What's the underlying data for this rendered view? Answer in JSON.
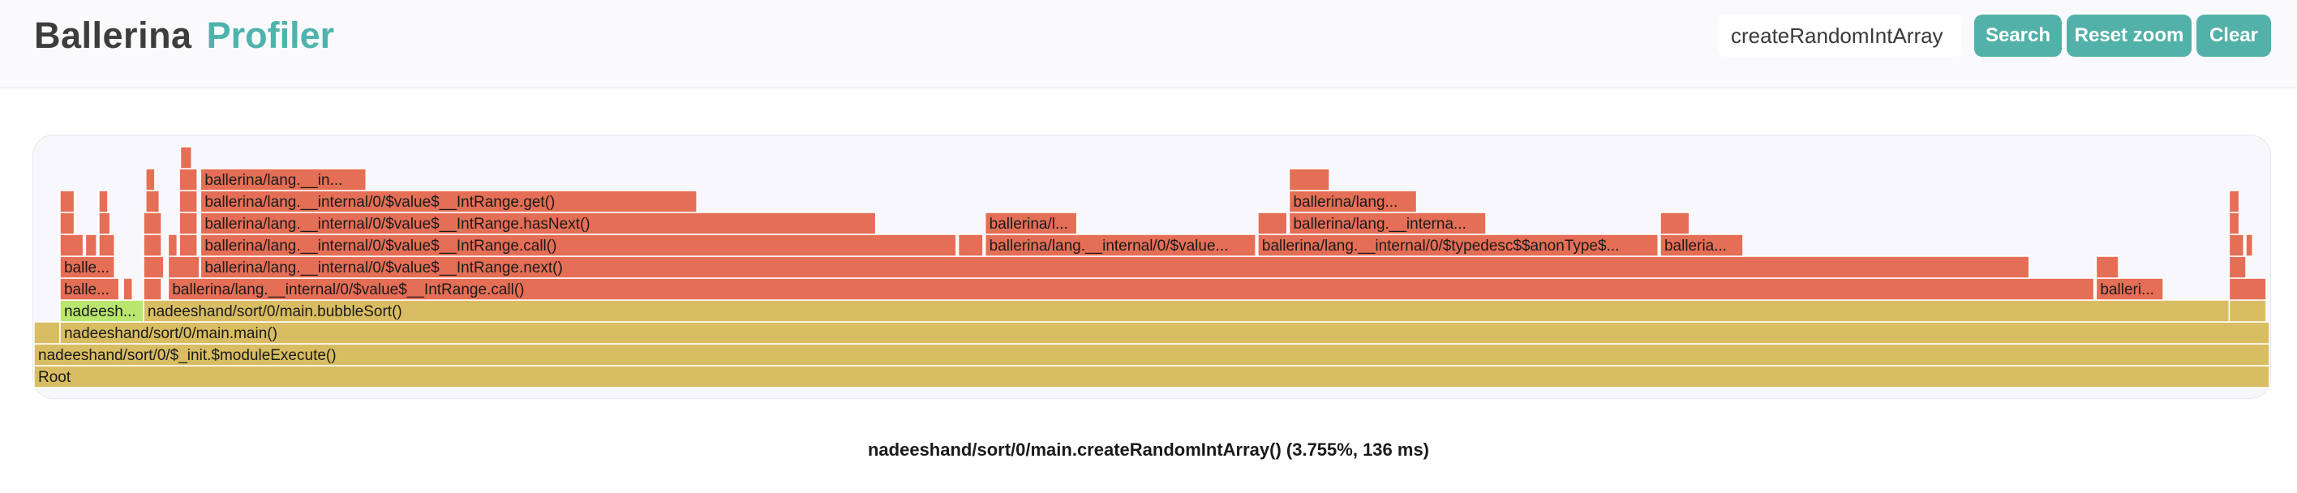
{
  "header": {
    "brand_primary": "Ballerina",
    "brand_secondary": "Profiler",
    "search_value": "createRandomIntArray",
    "search_label": "Search",
    "reset_label": "Reset zoom",
    "clear_label": "Clear"
  },
  "flamegraph": {
    "colors": {
      "hot": "#e56e56",
      "warm": "#d9bd62",
      "match": "#b9e66f",
      "stroke": "#ffffff"
    },
    "frames": [
      {
        "label": "Root",
        "level": 0,
        "start": 0.0,
        "end": 1.0,
        "color": "warm"
      },
      {
        "label": "nadeeshand/sort/0/$_init.$moduleExecute()",
        "level": 1,
        "start": 0.0,
        "end": 1.0,
        "color": "warm"
      },
      {
        "label": "",
        "level": 2,
        "start": 0.0,
        "end": 0.0116,
        "color": "warm"
      },
      {
        "label": "nadeeshand/sort/0/main.main()",
        "level": 2,
        "start": 0.0116,
        "end": 1.0,
        "color": "warm"
      },
      {
        "label": "nadeesh...",
        "level": 3,
        "start": 0.0116,
        "end": 0.049,
        "color": "match"
      },
      {
        "label": "nadeeshand/sort/0/main.bubbleSort()",
        "level": 3,
        "start": 0.049,
        "end": 0.982,
        "color": "warm"
      },
      {
        "label": "",
        "level": 3,
        "start": 0.982,
        "end": 0.9985,
        "color": "warm"
      },
      {
        "label": "balle...",
        "level": 4,
        "start": 0.0116,
        "end": 0.038,
        "color": "hot"
      },
      {
        "label": "",
        "level": 4,
        "start": 0.04,
        "end": 0.044,
        "color": "hot"
      },
      {
        "label": "",
        "level": 4,
        "start": 0.049,
        "end": 0.057,
        "color": "hot"
      },
      {
        "label": "ballerina/lang.__internal/0/$value$__IntRange.call()",
        "level": 4,
        "start": 0.06,
        "end": 0.9215,
        "color": "hot"
      },
      {
        "label": "balleri...",
        "level": 4,
        "start": 0.9225,
        "end": 0.9525,
        "color": "hot"
      },
      {
        "label": "",
        "level": 4,
        "start": 0.982,
        "end": 0.9985,
        "color": "hot"
      },
      {
        "label": "balle...",
        "level": 5,
        "start": 0.0116,
        "end": 0.036,
        "color": "hot"
      },
      {
        "label": "",
        "level": 5,
        "start": 0.049,
        "end": 0.058,
        "color": "hot"
      },
      {
        "label": "",
        "level": 5,
        "start": 0.06,
        "end": 0.074,
        "color": "hot"
      },
      {
        "label": "ballerina/lang.__internal/0/$value$__IntRange.next()",
        "level": 5,
        "start": 0.0745,
        "end": 0.8925,
        "color": "hot"
      },
      {
        "label": "",
        "level": 5,
        "start": 0.9225,
        "end": 0.9325,
        "color": "hot"
      },
      {
        "label": "",
        "level": 5,
        "start": 0.982,
        "end": 0.9895,
        "color": "hot"
      },
      {
        "label": "",
        "level": 6,
        "start": 0.0116,
        "end": 0.022,
        "color": "hot"
      },
      {
        "label": "",
        "level": 6,
        "start": 0.023,
        "end": 0.028,
        "color": "hot"
      },
      {
        "label": "",
        "level": 6,
        "start": 0.029,
        "end": 0.036,
        "color": "hot"
      },
      {
        "label": "",
        "level": 6,
        "start": 0.049,
        "end": 0.057,
        "color": "hot"
      },
      {
        "label": "",
        "level": 6,
        "start": 0.06,
        "end": 0.064,
        "color": "hot"
      },
      {
        "label": "",
        "level": 6,
        "start": 0.065,
        "end": 0.073,
        "color": "hot"
      },
      {
        "label": "ballerina/lang.__internal/0/$value$__IntRange.call()",
        "level": 6,
        "start": 0.0745,
        "end": 0.4125,
        "color": "hot"
      },
      {
        "label": "",
        "level": 6,
        "start": 0.4135,
        "end": 0.4245,
        "color": "hot"
      },
      {
        "label": "ballerina/lang.__internal/0/$value...",
        "level": 6,
        "start": 0.4255,
        "end": 0.5465,
        "color": "hot"
      },
      {
        "label": "ballerina/lang.__internal/0/$typedesc$$anonType$...",
        "level": 6,
        "start": 0.5475,
        "end": 0.7265,
        "color": "hot"
      },
      {
        "label": "balleria...",
        "level": 6,
        "start": 0.7275,
        "end": 0.7645,
        "color": "hot"
      },
      {
        "label": "",
        "level": 6,
        "start": 0.982,
        "end": 0.9885,
        "color": "hot"
      },
      {
        "label": "",
        "level": 6,
        "start": 0.9895,
        "end": 0.9925,
        "color": "hot"
      },
      {
        "label": "",
        "level": 7,
        "start": 0.0116,
        "end": 0.018,
        "color": "hot"
      },
      {
        "label": "",
        "level": 7,
        "start": 0.029,
        "end": 0.034,
        "color": "hot"
      },
      {
        "label": "",
        "level": 7,
        "start": 0.049,
        "end": 0.057,
        "color": "hot"
      },
      {
        "label": "",
        "level": 7,
        "start": 0.065,
        "end": 0.073,
        "color": "hot"
      },
      {
        "label": "ballerina/lang.__internal/0/$value$__IntRange.hasNext()",
        "level": 7,
        "start": 0.0745,
        "end": 0.3765,
        "color": "hot"
      },
      {
        "label": "ballerina/l...",
        "level": 7,
        "start": 0.4255,
        "end": 0.4665,
        "color": "hot"
      },
      {
        "label": "",
        "level": 7,
        "start": 0.5475,
        "end": 0.5605,
        "color": "hot"
      },
      {
        "label": "ballerina/lang.__interna...",
        "level": 7,
        "start": 0.5615,
        "end": 0.6495,
        "color": "hot"
      },
      {
        "label": "",
        "level": 7,
        "start": 0.7275,
        "end": 0.7405,
        "color": "hot"
      },
      {
        "label": "",
        "level": 7,
        "start": 0.982,
        "end": 0.9865,
        "color": "hot"
      },
      {
        "label": "",
        "level": 8,
        "start": 0.0116,
        "end": 0.018,
        "color": "hot"
      },
      {
        "label": "",
        "level": 8,
        "start": 0.029,
        "end": 0.033,
        "color": "hot"
      },
      {
        "label": "",
        "level": 8,
        "start": 0.05,
        "end": 0.056,
        "color": "hot"
      },
      {
        "label": "",
        "level": 8,
        "start": 0.065,
        "end": 0.073,
        "color": "hot"
      },
      {
        "label": "ballerina/lang.__internal/0/$value$__IntRange.get()",
        "level": 8,
        "start": 0.0745,
        "end": 0.2965,
        "color": "hot"
      },
      {
        "label": "ballerina/lang...",
        "level": 8,
        "start": 0.5615,
        "end": 0.6185,
        "color": "hot"
      },
      {
        "label": "",
        "level": 8,
        "start": 0.982,
        "end": 0.9865,
        "color": "hot"
      },
      {
        "label": "",
        "level": 9,
        "start": 0.05,
        "end": 0.054,
        "color": "hot"
      },
      {
        "label": "",
        "level": 9,
        "start": 0.065,
        "end": 0.073,
        "color": "hot"
      },
      {
        "label": "ballerina/lang.__in...",
        "level": 9,
        "start": 0.0745,
        "end": 0.1485,
        "color": "hot"
      },
      {
        "label": "",
        "level": 9,
        "start": 0.5615,
        "end": 0.5795,
        "color": "hot"
      },
      {
        "label": "",
        "level": 10,
        "start": 0.0655,
        "end": 0.0705,
        "color": "hot"
      }
    ]
  },
  "details": {
    "text": "nadeeshand/sort/0/main.createRandomIntArray() (3.755%, 136 ms)"
  }
}
